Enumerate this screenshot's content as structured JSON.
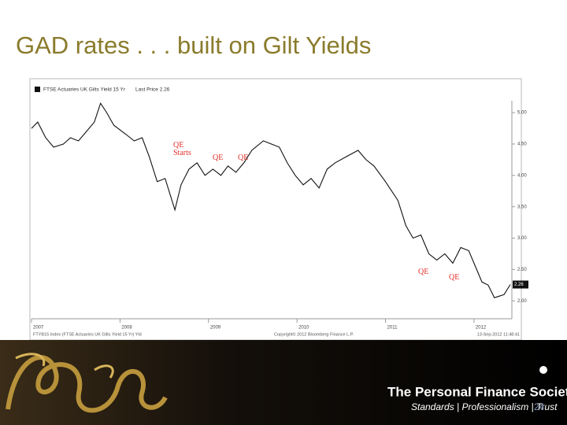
{
  "slide": {
    "title": "GAD rates . . . built on Gilt Yields"
  },
  "chart_data": {
    "type": "line",
    "legend_text": "Last Price 2.26",
    "last_price_label": "2.26",
    "source": "FTYB15 Index (FTSE Actuaries UK Gilts Yield 15 Yr) Yld",
    "copyright": "Copyright© 2012 Bloomberg Finance L.P.",
    "timestamp": "13-Sep-2012 11:48:41",
    "annotations": [
      "QE Starts",
      "QE",
      "QE",
      "QE",
      "QE"
    ],
    "grid": false,
    "xlim": [
      2007,
      2012.41
    ],
    "xticks": [
      2007,
      2008,
      2009,
      2010,
      2011,
      2012
    ],
    "ylim": [
      1.84,
      5.19
    ],
    "yticks": [
      {
        "value": 2,
        "label": "2.00"
      },
      {
        "value": 2.5,
        "label": "2.50"
      },
      {
        "value": 3,
        "label": "3.00"
      },
      {
        "value": 3.5,
        "label": "3.50"
      },
      {
        "value": 4,
        "label": "4.00"
      },
      {
        "value": 4.5,
        "label": "4.50"
      },
      {
        "value": 5,
        "label": "5.00"
      }
    ],
    "x": [
      2007.0,
      2007.07,
      2007.16,
      2007.25,
      2007.36,
      2007.44,
      2007.53,
      2007.62,
      2007.71,
      2007.78,
      2007.85,
      2007.93,
      2008.07,
      2008.16,
      2008.25,
      2008.33,
      2008.42,
      2008.51,
      2008.62,
      2008.69,
      2008.78,
      2008.87,
      2008.96,
      2009.05,
      2009.14,
      2009.22,
      2009.31,
      2009.4,
      2009.49,
      2009.62,
      2009.71,
      2009.8,
      2009.89,
      2009.98,
      2010.07,
      2010.16,
      2010.25,
      2010.34,
      2010.43,
      2010.56,
      2010.69,
      2010.78,
      2010.87,
      2011.0,
      2011.14,
      2011.23,
      2011.31,
      2011.4,
      2011.49,
      2011.58,
      2011.67,
      2011.76,
      2011.85,
      2011.94,
      2012.03,
      2012.09,
      2012.16,
      2012.23,
      2012.34,
      2012.41
    ],
    "series": [
      {
        "name": "FTSE Actuaries UK Gilts Yield 15 Yr",
        "color": "#111111",
        "values": [
          4.75,
          4.85,
          4.6,
          4.45,
          4.5,
          4.6,
          4.55,
          4.7,
          4.85,
          5.15,
          5.0,
          4.8,
          4.65,
          4.55,
          4.6,
          4.3,
          3.9,
          3.95,
          3.45,
          3.85,
          4.1,
          4.2,
          4.0,
          4.1,
          4.0,
          4.15,
          4.05,
          4.2,
          4.4,
          4.55,
          4.5,
          4.45,
          4.2,
          4.0,
          3.85,
          3.95,
          3.8,
          4.1,
          4.2,
          4.3,
          4.4,
          4.25,
          4.15,
          3.9,
          3.6,
          3.2,
          3.0,
          3.05,
          2.75,
          2.65,
          2.75,
          2.6,
          2.85,
          2.8,
          2.5,
          2.3,
          2.25,
          2.05,
          2.1,
          2.26
        ]
      }
    ]
  },
  "footer": {
    "society": "The Personal Finance Society",
    "tagline": "Standards | Professionalism | Trust",
    "page": 24
  }
}
